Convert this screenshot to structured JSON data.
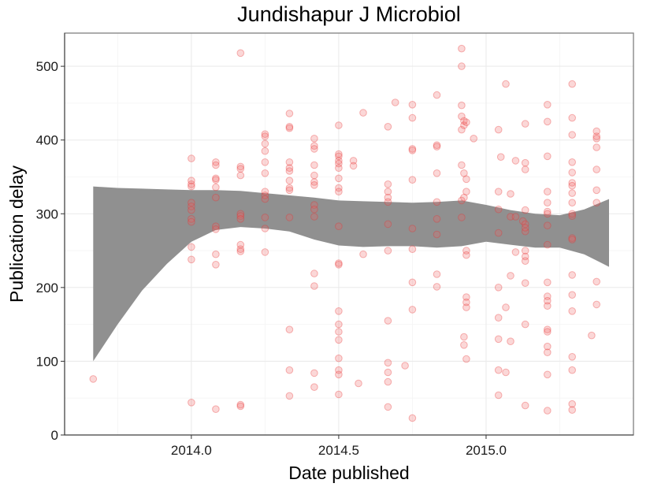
{
  "chart_data": {
    "type": "scatter",
    "title": "Jundishapur J Microbiol",
    "xlabel": "Date published",
    "ylabel": "Publication delay",
    "xlim": [
      2013.57,
      2015.5
    ],
    "ylim": [
      0,
      545
    ],
    "x_ticks": [
      2014.0,
      2014.5,
      2015.0
    ],
    "x_tick_labels": [
      "2014.0",
      "2014.5",
      "2015.0"
    ],
    "y_ticks": [
      0,
      100,
      200,
      300,
      400,
      500
    ],
    "y_tick_labels": [
      "0",
      "100",
      "200",
      "300",
      "400",
      "500"
    ],
    "grid": true,
    "point_color": "#e83030",
    "band_color": "#8a8a8a",
    "smooth_band": {
      "x": [
        2013.667,
        2013.75,
        2013.833,
        2013.917,
        2014.0,
        2014.083,
        2014.167,
        2014.25,
        2014.333,
        2014.417,
        2014.5,
        2014.583,
        2014.667,
        2014.75,
        2014.833,
        2014.917,
        2015.0,
        2015.083,
        2015.167,
        2015.25,
        2015.333,
        2015.417
      ],
      "upper": [
        337,
        335,
        334,
        333,
        332,
        332,
        331,
        328,
        325,
        322,
        318,
        317,
        316,
        315,
        316,
        318,
        312,
        305,
        300,
        298,
        306,
        320
      ],
      "lower": [
        100,
        150,
        196,
        232,
        262,
        278,
        282,
        280,
        276,
        265,
        257,
        255,
        256,
        256,
        254,
        256,
        262,
        258,
        254,
        254,
        245,
        228
      ]
    },
    "points": [
      {
        "x": 2013.667,
        "y": 76
      },
      {
        "x": 2014.0,
        "y": 375
      },
      {
        "x": 2014.0,
        "y": 345
      },
      {
        "x": 2014.0,
        "y": 340
      },
      {
        "x": 2014.0,
        "y": 337
      },
      {
        "x": 2014.0,
        "y": 315
      },
      {
        "x": 2014.0,
        "y": 310
      },
      {
        "x": 2014.0,
        "y": 305
      },
      {
        "x": 2014.0,
        "y": 293
      },
      {
        "x": 2014.0,
        "y": 289
      },
      {
        "x": 2014.0,
        "y": 255
      },
      {
        "x": 2014.0,
        "y": 238
      },
      {
        "x": 2014.0,
        "y": 44
      },
      {
        "x": 2014.083,
        "y": 370
      },
      {
        "x": 2014.083,
        "y": 366
      },
      {
        "x": 2014.083,
        "y": 348
      },
      {
        "x": 2014.083,
        "y": 346
      },
      {
        "x": 2014.083,
        "y": 336
      },
      {
        "x": 2014.083,
        "y": 322
      },
      {
        "x": 2014.083,
        "y": 283
      },
      {
        "x": 2014.083,
        "y": 279
      },
      {
        "x": 2014.083,
        "y": 245
      },
      {
        "x": 2014.083,
        "y": 231
      },
      {
        "x": 2014.083,
        "y": 35
      },
      {
        "x": 2014.167,
        "y": 518
      },
      {
        "x": 2014.167,
        "y": 364
      },
      {
        "x": 2014.167,
        "y": 361
      },
      {
        "x": 2014.167,
        "y": 352
      },
      {
        "x": 2014.167,
        "y": 300
      },
      {
        "x": 2014.167,
        "y": 297
      },
      {
        "x": 2014.167,
        "y": 293
      },
      {
        "x": 2014.167,
        "y": 258
      },
      {
        "x": 2014.167,
        "y": 252
      },
      {
        "x": 2014.167,
        "y": 249
      },
      {
        "x": 2014.167,
        "y": 41
      },
      {
        "x": 2014.167,
        "y": 39
      },
      {
        "x": 2014.25,
        "y": 408
      },
      {
        "x": 2014.25,
        "y": 405
      },
      {
        "x": 2014.25,
        "y": 395
      },
      {
        "x": 2014.25,
        "y": 385
      },
      {
        "x": 2014.25,
        "y": 370
      },
      {
        "x": 2014.25,
        "y": 355
      },
      {
        "x": 2014.25,
        "y": 330
      },
      {
        "x": 2014.25,
        "y": 325
      },
      {
        "x": 2014.25,
        "y": 320
      },
      {
        "x": 2014.25,
        "y": 295
      },
      {
        "x": 2014.25,
        "y": 280
      },
      {
        "x": 2014.25,
        "y": 248
      },
      {
        "x": 2014.333,
        "y": 436
      },
      {
        "x": 2014.333,
        "y": 418
      },
      {
        "x": 2014.333,
        "y": 416
      },
      {
        "x": 2014.333,
        "y": 370
      },
      {
        "x": 2014.333,
        "y": 362
      },
      {
        "x": 2014.333,
        "y": 358
      },
      {
        "x": 2014.333,
        "y": 345
      },
      {
        "x": 2014.333,
        "y": 335
      },
      {
        "x": 2014.333,
        "y": 332
      },
      {
        "x": 2014.333,
        "y": 295
      },
      {
        "x": 2014.333,
        "y": 143
      },
      {
        "x": 2014.333,
        "y": 88
      },
      {
        "x": 2014.333,
        "y": 53
      },
      {
        "x": 2014.417,
        "y": 402
      },
      {
        "x": 2014.417,
        "y": 392
      },
      {
        "x": 2014.417,
        "y": 388
      },
      {
        "x": 2014.417,
        "y": 366
      },
      {
        "x": 2014.417,
        "y": 352
      },
      {
        "x": 2014.417,
        "y": 343
      },
      {
        "x": 2014.417,
        "y": 339
      },
      {
        "x": 2014.417,
        "y": 312
      },
      {
        "x": 2014.417,
        "y": 306
      },
      {
        "x": 2014.417,
        "y": 296
      },
      {
        "x": 2014.417,
        "y": 219
      },
      {
        "x": 2014.417,
        "y": 202
      },
      {
        "x": 2014.417,
        "y": 84
      },
      {
        "x": 2014.417,
        "y": 65
      },
      {
        "x": 2014.5,
        "y": 420
      },
      {
        "x": 2014.5,
        "y": 381
      },
      {
        "x": 2014.5,
        "y": 378
      },
      {
        "x": 2014.5,
        "y": 372
      },
      {
        "x": 2014.5,
        "y": 368
      },
      {
        "x": 2014.5,
        "y": 362
      },
      {
        "x": 2014.5,
        "y": 348
      },
      {
        "x": 2014.5,
        "y": 335
      },
      {
        "x": 2014.5,
        "y": 330
      },
      {
        "x": 2014.5,
        "y": 283
      },
      {
        "x": 2014.5,
        "y": 233
      },
      {
        "x": 2014.5,
        "y": 231
      },
      {
        "x": 2014.5,
        "y": 168
      },
      {
        "x": 2014.5,
        "y": 150
      },
      {
        "x": 2014.5,
        "y": 140
      },
      {
        "x": 2014.5,
        "y": 129
      },
      {
        "x": 2014.5,
        "y": 104
      },
      {
        "x": 2014.5,
        "y": 88
      },
      {
        "x": 2014.5,
        "y": 82
      },
      {
        "x": 2014.5,
        "y": 55
      },
      {
        "x": 2014.583,
        "y": 437
      },
      {
        "x": 2014.583,
        "y": 245
      },
      {
        "x": 2014.567,
        "y": 70
      },
      {
        "x": 2014.55,
        "y": 372
      },
      {
        "x": 2014.55,
        "y": 365
      },
      {
        "x": 2014.667,
        "y": 418
      },
      {
        "x": 2014.667,
        "y": 340
      },
      {
        "x": 2014.667,
        "y": 330
      },
      {
        "x": 2014.667,
        "y": 322
      },
      {
        "x": 2014.667,
        "y": 316
      },
      {
        "x": 2014.667,
        "y": 286
      },
      {
        "x": 2014.667,
        "y": 250
      },
      {
        "x": 2014.667,
        "y": 155
      },
      {
        "x": 2014.667,
        "y": 98
      },
      {
        "x": 2014.667,
        "y": 85
      },
      {
        "x": 2014.667,
        "y": 72
      },
      {
        "x": 2014.667,
        "y": 38
      },
      {
        "x": 2014.692,
        "y": 451
      },
      {
        "x": 2014.725,
        "y": 94
      },
      {
        "x": 2014.75,
        "y": 448
      },
      {
        "x": 2014.75,
        "y": 430
      },
      {
        "x": 2014.75,
        "y": 388
      },
      {
        "x": 2014.75,
        "y": 386
      },
      {
        "x": 2014.75,
        "y": 346
      },
      {
        "x": 2014.75,
        "y": 280
      },
      {
        "x": 2014.75,
        "y": 252
      },
      {
        "x": 2014.75,
        "y": 207
      },
      {
        "x": 2014.75,
        "y": 170
      },
      {
        "x": 2014.75,
        "y": 23
      },
      {
        "x": 2014.833,
        "y": 461
      },
      {
        "x": 2014.833,
        "y": 393
      },
      {
        "x": 2014.833,
        "y": 391
      },
      {
        "x": 2014.833,
        "y": 355
      },
      {
        "x": 2014.833,
        "y": 316
      },
      {
        "x": 2014.833,
        "y": 293
      },
      {
        "x": 2014.833,
        "y": 272
      },
      {
        "x": 2014.833,
        "y": 218
      },
      {
        "x": 2014.833,
        "y": 201
      },
      {
        "x": 2014.917,
        "y": 524
      },
      {
        "x": 2014.917,
        "y": 500
      },
      {
        "x": 2014.917,
        "y": 447
      },
      {
        "x": 2014.917,
        "y": 432
      },
      {
        "x": 2014.917,
        "y": 414
      },
      {
        "x": 2014.917,
        "y": 366
      },
      {
        "x": 2014.917,
        "y": 318
      },
      {
        "x": 2014.917,
        "y": 295
      },
      {
        "x": 2014.925,
        "y": 426
      },
      {
        "x": 2014.925,
        "y": 420
      },
      {
        "x": 2014.925,
        "y": 355
      },
      {
        "x": 2014.925,
        "y": 322
      },
      {
        "x": 2014.925,
        "y": 133
      },
      {
        "x": 2014.925,
        "y": 122
      },
      {
        "x": 2014.933,
        "y": 424
      },
      {
        "x": 2014.933,
        "y": 347
      },
      {
        "x": 2014.933,
        "y": 330
      },
      {
        "x": 2014.933,
        "y": 250
      },
      {
        "x": 2014.933,
        "y": 244
      },
      {
        "x": 2014.933,
        "y": 187
      },
      {
        "x": 2014.933,
        "y": 180
      },
      {
        "x": 2014.933,
        "y": 173
      },
      {
        "x": 2014.933,
        "y": 103
      },
      {
        "x": 2014.958,
        "y": 402
      },
      {
        "x": 2015.042,
        "y": 414
      },
      {
        "x": 2015.042,
        "y": 330
      },
      {
        "x": 2015.042,
        "y": 306
      },
      {
        "x": 2015.042,
        "y": 274
      },
      {
        "x": 2015.042,
        "y": 200
      },
      {
        "x": 2015.042,
        "y": 159
      },
      {
        "x": 2015.042,
        "y": 130
      },
      {
        "x": 2015.042,
        "y": 88
      },
      {
        "x": 2015.042,
        "y": 54
      },
      {
        "x": 2015.05,
        "y": 377
      },
      {
        "x": 2015.067,
        "y": 476
      },
      {
        "x": 2015.067,
        "y": 173
      },
      {
        "x": 2015.067,
        "y": 85
      },
      {
        "x": 2015.083,
        "y": 327
      },
      {
        "x": 2015.083,
        "y": 296
      },
      {
        "x": 2015.083,
        "y": 216
      },
      {
        "x": 2015.083,
        "y": 127
      },
      {
        "x": 2015.1,
        "y": 372
      },
      {
        "x": 2015.1,
        "y": 296
      },
      {
        "x": 2015.1,
        "y": 248
      },
      {
        "x": 2015.125,
        "y": 290
      },
      {
        "x": 2015.133,
        "y": 286
      },
      {
        "x": 2015.133,
        "y": 276
      },
      {
        "x": 2015.133,
        "y": 422
      },
      {
        "x": 2015.133,
        "y": 369
      },
      {
        "x": 2015.133,
        "y": 360
      },
      {
        "x": 2015.133,
        "y": 305
      },
      {
        "x": 2015.133,
        "y": 281
      },
      {
        "x": 2015.133,
        "y": 250
      },
      {
        "x": 2015.133,
        "y": 242
      },
      {
        "x": 2015.133,
        "y": 236
      },
      {
        "x": 2015.133,
        "y": 206
      },
      {
        "x": 2015.133,
        "y": 150
      },
      {
        "x": 2015.133,
        "y": 40
      },
      {
        "x": 2015.208,
        "y": 448
      },
      {
        "x": 2015.208,
        "y": 425
      },
      {
        "x": 2015.208,
        "y": 378
      },
      {
        "x": 2015.208,
        "y": 330
      },
      {
        "x": 2015.208,
        "y": 315
      },
      {
        "x": 2015.208,
        "y": 303
      },
      {
        "x": 2015.208,
        "y": 300
      },
      {
        "x": 2015.208,
        "y": 284
      },
      {
        "x": 2015.208,
        "y": 258
      },
      {
        "x": 2015.208,
        "y": 207
      },
      {
        "x": 2015.208,
        "y": 188
      },
      {
        "x": 2015.208,
        "y": 182
      },
      {
        "x": 2015.208,
        "y": 175
      },
      {
        "x": 2015.208,
        "y": 143
      },
      {
        "x": 2015.208,
        "y": 140
      },
      {
        "x": 2015.208,
        "y": 120
      },
      {
        "x": 2015.208,
        "y": 112
      },
      {
        "x": 2015.208,
        "y": 82
      },
      {
        "x": 2015.208,
        "y": 33
      },
      {
        "x": 2015.292,
        "y": 476
      },
      {
        "x": 2015.292,
        "y": 430
      },
      {
        "x": 2015.292,
        "y": 407
      },
      {
        "x": 2015.292,
        "y": 370
      },
      {
        "x": 2015.292,
        "y": 356
      },
      {
        "x": 2015.292,
        "y": 342
      },
      {
        "x": 2015.292,
        "y": 338
      },
      {
        "x": 2015.292,
        "y": 328
      },
      {
        "x": 2015.292,
        "y": 315
      },
      {
        "x": 2015.292,
        "y": 300
      },
      {
        "x": 2015.292,
        "y": 297
      },
      {
        "x": 2015.292,
        "y": 267
      },
      {
        "x": 2015.292,
        "y": 265
      },
      {
        "x": 2015.292,
        "y": 217
      },
      {
        "x": 2015.292,
        "y": 190
      },
      {
        "x": 2015.292,
        "y": 168
      },
      {
        "x": 2015.292,
        "y": 106
      },
      {
        "x": 2015.292,
        "y": 88
      },
      {
        "x": 2015.292,
        "y": 42
      },
      {
        "x": 2015.292,
        "y": 34
      },
      {
        "x": 2015.375,
        "y": 412
      },
      {
        "x": 2015.375,
        "y": 405
      },
      {
        "x": 2015.375,
        "y": 402
      },
      {
        "x": 2015.375,
        "y": 390
      },
      {
        "x": 2015.375,
        "y": 360
      },
      {
        "x": 2015.375,
        "y": 332
      },
      {
        "x": 2015.375,
        "y": 315
      },
      {
        "x": 2015.375,
        "y": 208
      },
      {
        "x": 2015.375,
        "y": 177
      },
      {
        "x": 2015.358,
        "y": 135
      }
    ]
  }
}
